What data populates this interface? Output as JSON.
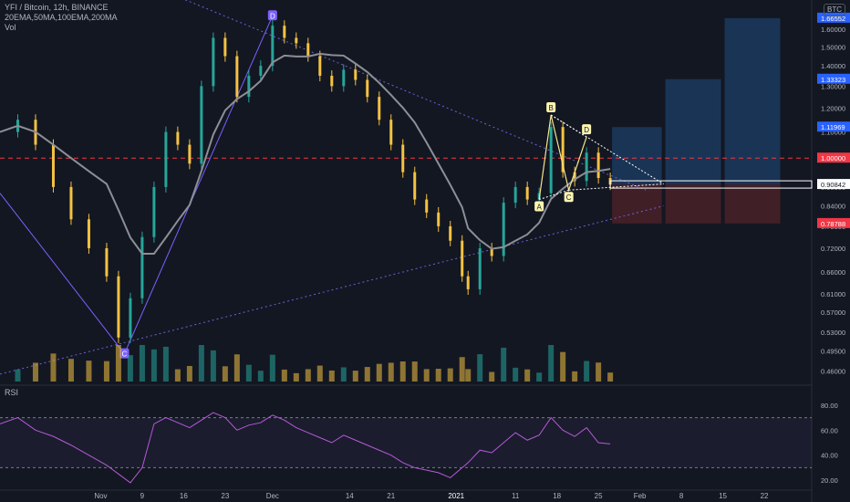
{
  "header": {
    "title": "YFI / Bitcoin, 12h, BINANCE",
    "indicators": "20EMA,50MA,100EMA,200MA",
    "volume_label": "Vol",
    "currency_badge": "BTC"
  },
  "rsi_panel": {
    "label": "RSI"
  },
  "colors": {
    "background": "#131722",
    "up_candle": "#26a69a",
    "down_candle": "#f5c242",
    "ma_line": "#8c8f96",
    "pattern_line": "#7b61ff",
    "trend_dotted": "#6f5fd6",
    "harmonic_line": "#f5e58a",
    "target_zone": "#1c3a5e",
    "stop_zone": "#4a2128",
    "rsi_line": "#b55ad6",
    "resistance_line": "#f23645"
  },
  "chart_data": [
    {
      "type": "candlestick",
      "title": "YFI / Bitcoin, 12h, BINANCE",
      "x_ticks": [
        "Nov",
        "9",
        "16",
        "23",
        "Dec",
        "14",
        "21",
        "2021",
        "11",
        "18",
        "25",
        "Feb",
        "8",
        "15",
        "22"
      ],
      "y_axis_scale": "log",
      "y_ticks": [
        "1.60000",
        "1.50000",
        "1.40000",
        "1.30000",
        "1.20000",
        "1.10000",
        "1.00000",
        "0.90000",
        "0.84000",
        "0.78000",
        "0.72000",
        "0.66000",
        "0.61000",
        "0.57000",
        "0.53000",
        "0.49500",
        "0.46000"
      ],
      "price_labels": [
        {
          "text": "1.66552",
          "value": 1.66552,
          "color": "#2962ff"
        },
        {
          "text": "1.33323",
          "value": 1.33323,
          "color": "#2962ff"
        },
        {
          "text": "1.11969",
          "value": 1.11969,
          "color": "#2962ff"
        },
        {
          "text": "1.00000",
          "value": 1.0,
          "color": "#f23645"
        },
        {
          "text": "0.90842",
          "value": 0.90842,
          "color": "#ffffff"
        },
        {
          "text": "0.78788",
          "value": 0.78788,
          "color": "#f23645"
        }
      ],
      "pattern_points": [
        {
          "label": "C",
          "date": "2020-11-06",
          "value": 0.49
        },
        {
          "label": "D",
          "date": "2020-12-01",
          "value": 1.68
        }
      ],
      "harmonic_points": [
        {
          "label": "A",
          "date": "2021-01-15",
          "value": 0.86
        },
        {
          "label": "B",
          "date": "2021-01-17",
          "value": 1.17
        },
        {
          "label": "C",
          "date": "2021-01-20",
          "value": 0.89
        },
        {
          "label": "D",
          "date": "2021-01-23",
          "value": 1.08
        }
      ],
      "candles_series": [
        {
          "date": "2020-10-16",
          "value": 1.1
        },
        {
          "date": "2020-10-19",
          "value": 1.15
        },
        {
          "date": "2020-10-22",
          "value": 1.05
        },
        {
          "date": "2020-10-25",
          "value": 0.9
        },
        {
          "date": "2020-10-28",
          "value": 0.8
        },
        {
          "date": "2020-10-31",
          "value": 0.72
        },
        {
          "date": "2020-11-03",
          "value": 0.65
        },
        {
          "date": "2020-11-05",
          "value": 0.52
        },
        {
          "date": "2020-11-07",
          "value": 0.6
        },
        {
          "date": "2020-11-09",
          "value": 0.75
        },
        {
          "date": "2020-11-11",
          "value": 0.9
        },
        {
          "date": "2020-11-13",
          "value": 1.1
        },
        {
          "date": "2020-11-15",
          "value": 1.05
        },
        {
          "date": "2020-11-17",
          "value": 0.98
        },
        {
          "date": "2020-11-19",
          "value": 1.3
        },
        {
          "date": "2020-11-21",
          "value": 1.55
        },
        {
          "date": "2020-11-23",
          "value": 1.45
        },
        {
          "date": "2020-11-25",
          "value": 1.25
        },
        {
          "date": "2020-11-27",
          "value": 1.35
        },
        {
          "date": "2020-11-29",
          "value": 1.4
        },
        {
          "date": "2020-12-01",
          "value": 1.62
        },
        {
          "date": "2020-12-03",
          "value": 1.55
        },
        {
          "date": "2020-12-05",
          "value": 1.52
        },
        {
          "date": "2020-12-07",
          "value": 1.45
        },
        {
          "date": "2020-12-09",
          "value": 1.35
        },
        {
          "date": "2020-12-11",
          "value": 1.3
        },
        {
          "date": "2020-12-13",
          "value": 1.38
        },
        {
          "date": "2020-12-15",
          "value": 1.33
        },
        {
          "date": "2020-12-17",
          "value": 1.25
        },
        {
          "date": "2020-12-19",
          "value": 1.15
        },
        {
          "date": "2020-12-21",
          "value": 1.05
        },
        {
          "date": "2020-12-23",
          "value": 0.95
        },
        {
          "date": "2020-12-25",
          "value": 0.86
        },
        {
          "date": "2020-12-27",
          "value": 0.82
        },
        {
          "date": "2020-12-29",
          "value": 0.78
        },
        {
          "date": "2020-12-31",
          "value": 0.74
        },
        {
          "date": "2021-01-02",
          "value": 0.65
        },
        {
          "date": "2021-01-03",
          "value": 0.62
        },
        {
          "date": "2021-01-05",
          "value": 0.72
        },
        {
          "date": "2021-01-07",
          "value": 0.7
        },
        {
          "date": "2021-01-09",
          "value": 0.85
        },
        {
          "date": "2021-01-11",
          "value": 0.9
        },
        {
          "date": "2021-01-13",
          "value": 0.86
        },
        {
          "date": "2021-01-15",
          "value": 0.88
        },
        {
          "date": "2021-01-17",
          "value": 1.12
        },
        {
          "date": "2021-01-19",
          "value": 0.95
        },
        {
          "date": "2021-01-21",
          "value": 0.92
        },
        {
          "date": "2021-01-23",
          "value": 1.02
        },
        {
          "date": "2021-01-25",
          "value": 0.93
        },
        {
          "date": "2021-01-27",
          "value": 0.908
        }
      ],
      "projection_boxes": [
        {
          "start": "2021-01-27",
          "end": "2021-02-05",
          "target": 1.11969,
          "stop": 0.78788
        },
        {
          "start": "2021-02-05",
          "end": "2021-02-15",
          "target": 1.33323,
          "stop": 0.78788
        },
        {
          "start": "2021-02-15",
          "end": "2021-02-25",
          "target": 1.66552,
          "stop": 0.78788
        }
      ],
      "horizontal_line": 1.0,
      "current_price": 0.90842
    },
    {
      "type": "line",
      "title": "RSI",
      "y_ticks": [
        "80.00",
        "60.00",
        "40.00",
        "20.00"
      ],
      "ylim": [
        20,
        80
      ],
      "bands": [
        70,
        30
      ],
      "series": [
        {
          "values": [
            65,
            70,
            60,
            55,
            48,
            40,
            32,
            25,
            18,
            30,
            65,
            70,
            66,
            62,
            68,
            74,
            70,
            60,
            64,
            66,
            72,
            68,
            62,
            58,
            54,
            50,
            56,
            52,
            48,
            44,
            40,
            34,
            30,
            28,
            26,
            22,
            30,
            34,
            44,
            42,
            50,
            58,
            52,
            56,
            70,
            60,
            55,
            62,
            50,
            49
          ]
        }
      ]
    }
  ]
}
